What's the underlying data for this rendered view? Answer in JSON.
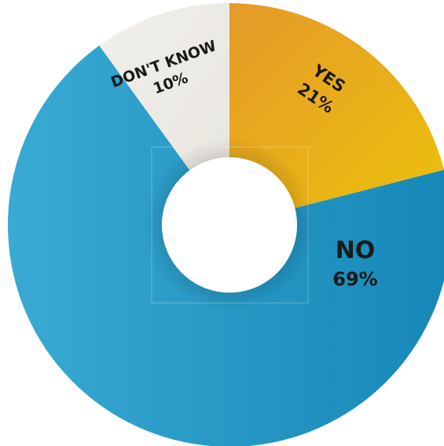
{
  "chart_data": {
    "type": "pie",
    "donut": true,
    "title": "",
    "legend": "none",
    "slices": [
      {
        "label": "YES",
        "value": 21,
        "value_label": "21%",
        "color_start": "#e59a2a",
        "color_end": "#ecc00c"
      },
      {
        "label": "NO",
        "value": 69,
        "value_label": "69%",
        "color_start": "#1687b7",
        "color_end": "#38aad3"
      },
      {
        "label": "DON'T KNOW",
        "value": 10,
        "value_label": "10%",
        "color_start": "#f1efeb",
        "color_end": "#e9e6e0"
      }
    ]
  }
}
